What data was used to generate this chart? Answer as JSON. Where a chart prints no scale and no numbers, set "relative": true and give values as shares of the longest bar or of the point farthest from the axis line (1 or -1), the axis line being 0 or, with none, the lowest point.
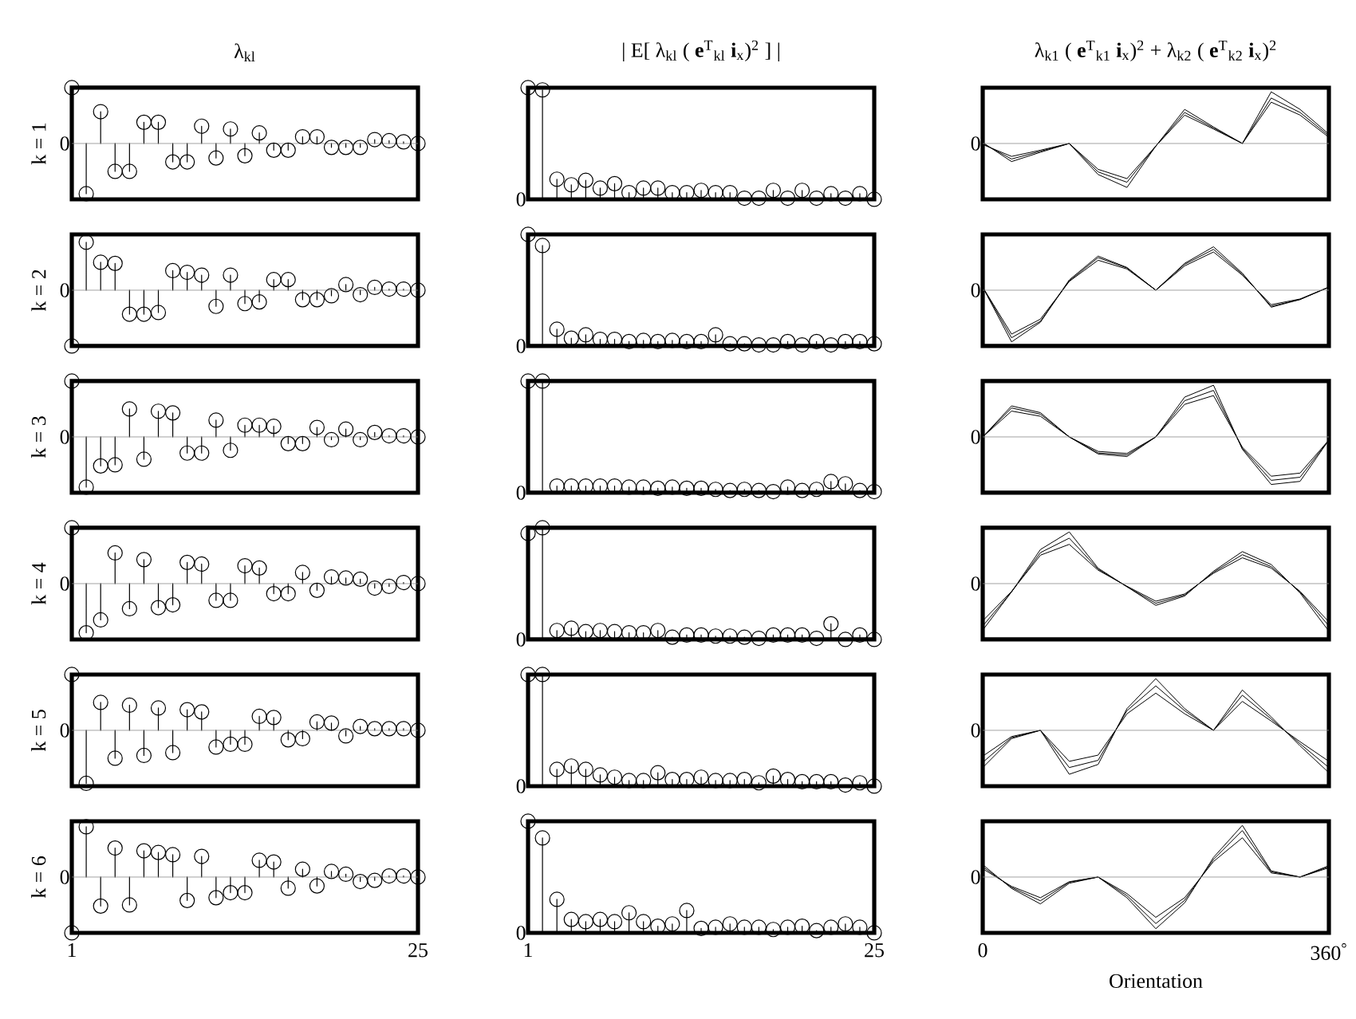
{
  "chart_data": [
    {
      "type": "lollipop",
      "title": "λ$_{kl}$",
      "ylabel": "k = 1",
      "x": [
        1,
        2,
        3,
        4,
        5,
        6,
        7,
        8,
        9,
        10,
        11,
        12,
        13,
        14,
        15,
        16,
        17,
        18,
        19,
        20,
        21,
        22,
        23,
        24,
        25
      ],
      "xlim": [
        1,
        25
      ],
      "ref_lines": [
        {
          "axis": "y",
          "value": 0,
          "label": "0"
        }
      ],
      "tick_labels": "y",
      "relative": true,
      "marker": "circle",
      "color": "#000000",
      "values": [
        1,
        -0.9,
        0.57,
        -0.5,
        -0.5,
        0.38,
        0.38,
        -0.33,
        -0.33,
        0.31,
        -0.26,
        0.26,
        -0.22,
        0.19,
        -0.12,
        -0.12,
        0.12,
        0.12,
        -0.07,
        -0.07,
        -0.07,
        0.07,
        0.05,
        0.03,
        0
      ]
    },
    {
      "type": "lollipop",
      "title": "| E[ λ$_{kl}$ ( **e**$^{T}$$_{kl}$  **i**$_{x}$)$^{2}$ ] |",
      "x": [
        1,
        2,
        3,
        4,
        5,
        6,
        7,
        8,
        9,
        10,
        11,
        12,
        13,
        14,
        15,
        16,
        17,
        18,
        19,
        20,
        21,
        22,
        23,
        24,
        25
      ],
      "xlim": [
        1,
        25
      ],
      "annotations": [
        "0"
      ],
      "tick_labels": "y",
      "relative": true,
      "marker": "circle",
      "color": "#000000",
      "values": [
        1,
        0.98,
        0.18,
        0.13,
        0.17,
        0.1,
        0.14,
        0.06,
        0.1,
        0.1,
        0.06,
        0.06,
        0.08,
        0.06,
        0.06,
        0.01,
        0.01,
        0.08,
        0.01,
        0.08,
        0.01,
        0.05,
        0.01,
        0.05,
        0
      ]
    },
    {
      "type": "line",
      "title": "λ$_{k1}$ ( **e**$^{T}$$_{k1}$  **i**$_{x}$)$^{2}$ + λ$_{k2}$ ( **e**$^{T}$$_{k2}$  **i**$_{x}$)$^{2}$",
      "x": [
        0,
        30,
        60,
        90,
        120,
        150,
        180,
        210,
        240,
        270,
        300,
        330,
        360
      ],
      "xlim": [
        0,
        360
      ],
      "ref_lines": [
        {
          "axis": "y",
          "value": 0,
          "label": "0"
        }
      ],
      "tick_labels": "y",
      "relative": true,
      "color": "#000000",
      "series": [
        {
          "values": [
            0.02,
            -0.35,
            -0.17,
            0,
            -0.6,
            -0.85,
            -0.05,
            0.66,
            0.32,
            0,
            1,
            0.66,
            0.18
          ]
        },
        {
          "values": [
            0,
            -0.3,
            -0.15,
            0,
            -0.55,
            -0.75,
            -0.05,
            0.6,
            0.3,
            0,
            0.88,
            0.6,
            0.15
          ]
        },
        {
          "values": [
            -0.02,
            -0.25,
            -0.13,
            0,
            -0.5,
            -0.68,
            -0.05,
            0.55,
            0.28,
            0,
            0.8,
            0.55,
            0.12
          ]
        }
      ]
    },
    {
      "type": "lollipop",
      "ylabel": "k = 2",
      "x": [
        1,
        2,
        3,
        4,
        5,
        6,
        7,
        8,
        9,
        10,
        11,
        12,
        13,
        14,
        15,
        16,
        17,
        18,
        19,
        20,
        21,
        22,
        23,
        24,
        25
      ],
      "xlim": [
        1,
        25
      ],
      "ref_lines": [
        {
          "axis": "y",
          "value": 0,
          "label": "0"
        }
      ],
      "tick_labels": "y",
      "relative": true,
      "marker": "circle",
      "color": "#000000",
      "values": [
        -1,
        0.86,
        0.5,
        0.48,
        -0.43,
        -0.43,
        -0.4,
        0.35,
        0.32,
        0.27,
        -0.29,
        0.27,
        -0.24,
        -0.21,
        0.19,
        0.19,
        -0.17,
        -0.17,
        -0.1,
        0.1,
        -0.08,
        0.05,
        0.02,
        0.02,
        0
      ]
    },
    {
      "type": "lollipop",
      "x": [
        1,
        2,
        3,
        4,
        5,
        6,
        7,
        8,
        9,
        10,
        11,
        12,
        13,
        14,
        15,
        16,
        17,
        18,
        19,
        20,
        21,
        22,
        23,
        24,
        25
      ],
      "xlim": [
        1,
        25
      ],
      "annotations": [
        "0"
      ],
      "tick_labels": "y",
      "relative": true,
      "marker": "circle",
      "color": "#000000",
      "values": [
        1,
        0.9,
        0.15,
        0.07,
        0.1,
        0.06,
        0.06,
        0.04,
        0.05,
        0.04,
        0.05,
        0.04,
        0.04,
        0.1,
        0.02,
        0.02,
        0.01,
        0.01,
        0.04,
        0.01,
        0.04,
        0.01,
        0.04,
        0.04,
        0.02
      ]
    },
    {
      "type": "line",
      "x": [
        0,
        30,
        60,
        90,
        120,
        150,
        180,
        210,
        240,
        270,
        300,
        330,
        360
      ],
      "xlim": [
        0,
        360
      ],
      "ref_lines": [
        {
          "axis": "y",
          "value": 0,
          "label": "0"
        }
      ],
      "tick_labels": "y",
      "relative": true,
      "color": "#000000",
      "series": [
        {
          "values": [
            0.06,
            -1,
            -0.62,
            0.2,
            0.66,
            0.44,
            0,
            0.52,
            0.84,
            0.33,
            -0.33,
            -0.18,
            0.06
          ]
        },
        {
          "values": [
            0.06,
            -0.92,
            -0.6,
            0.18,
            0.63,
            0.43,
            0,
            0.5,
            0.79,
            0.31,
            -0.31,
            -0.18,
            0.06
          ]
        },
        {
          "values": [
            0.06,
            -0.85,
            -0.56,
            0.17,
            0.58,
            0.41,
            0,
            0.47,
            0.74,
            0.29,
            -0.28,
            -0.17,
            0.06
          ]
        }
      ]
    },
    {
      "type": "lollipop",
      "ylabel": "k = 3",
      "x": [
        1,
        2,
        3,
        4,
        5,
        6,
        7,
        8,
        9,
        10,
        11,
        12,
        13,
        14,
        15,
        16,
        17,
        18,
        19,
        20,
        21,
        22,
        23,
        24,
        25
      ],
      "xlim": [
        1,
        25
      ],
      "ref_lines": [
        {
          "axis": "y",
          "value": 0,
          "label": "0"
        }
      ],
      "tick_labels": "y",
      "relative": true,
      "marker": "circle",
      "color": "#000000",
      "values": [
        1,
        -0.9,
        -0.52,
        -0.5,
        0.5,
        -0.4,
        0.46,
        0.43,
        -0.29,
        -0.29,
        0.3,
        -0.24,
        0.21,
        0.21,
        0.19,
        -0.12,
        -0.12,
        0.17,
        -0.05,
        0.14,
        -0.05,
        0.08,
        0.02,
        0.02,
        0
      ]
    },
    {
      "type": "lollipop",
      "x": [
        1,
        2,
        3,
        4,
        5,
        6,
        7,
        8,
        9,
        10,
        11,
        12,
        13,
        14,
        15,
        16,
        17,
        18,
        19,
        20,
        21,
        22,
        23,
        24,
        25
      ],
      "xlim": [
        1,
        25
      ],
      "annotations": [
        "0"
      ],
      "tick_labels": "y",
      "relative": true,
      "marker": "circle",
      "color": "#000000",
      "values": [
        1,
        1,
        0.06,
        0.06,
        0.06,
        0.06,
        0.06,
        0.05,
        0.05,
        0.04,
        0.05,
        0.04,
        0.04,
        0.03,
        0.02,
        0.03,
        0.02,
        0.01,
        0.05,
        0.02,
        0.03,
        0.1,
        0.08,
        0.02,
        0.01
      ]
    },
    {
      "type": "line",
      "x": [
        0,
        30,
        60,
        90,
        120,
        150,
        180,
        210,
        240,
        270,
        300,
        330,
        360
      ],
      "xlim": [
        0,
        360
      ],
      "ref_lines": [
        {
          "axis": "y",
          "value": 0,
          "label": "0"
        }
      ],
      "tick_labels": "y",
      "relative": true,
      "color": "#000000",
      "series": [
        {
          "values": [
            0,
            0.6,
            0.47,
            0,
            -0.33,
            -0.38,
            0,
            0.77,
            1,
            -0.24,
            -0.92,
            -0.86,
            -0.06
          ]
        },
        {
          "values": [
            0,
            0.56,
            0.44,
            0,
            -0.31,
            -0.35,
            0,
            0.7,
            0.9,
            -0.22,
            -0.84,
            -0.78,
            -0.06
          ]
        },
        {
          "values": [
            0,
            0.5,
            0.4,
            0,
            -0.28,
            -0.32,
            0,
            0.63,
            0.8,
            -0.2,
            -0.76,
            -0.7,
            -0.06
          ]
        }
      ]
    },
    {
      "type": "lollipop",
      "ylabel": "k = 4",
      "x": [
        1,
        2,
        3,
        4,
        5,
        6,
        7,
        8,
        9,
        10,
        11,
        12,
        13,
        14,
        15,
        16,
        17,
        18,
        19,
        20,
        21,
        22,
        23,
        24,
        25
      ],
      "xlim": [
        1,
        25
      ],
      "ref_lines": [
        {
          "axis": "y",
          "value": 0,
          "label": "0"
        }
      ],
      "tick_labels": "y",
      "relative": true,
      "marker": "circle",
      "color": "#000000",
      "values": [
        1,
        -0.88,
        -0.65,
        0.55,
        -0.45,
        0.43,
        -0.43,
        -0.38,
        0.38,
        0.35,
        -0.3,
        -0.3,
        0.32,
        0.28,
        -0.18,
        -0.18,
        0.2,
        -0.12,
        0.12,
        0.1,
        0.08,
        -0.08,
        -0.05,
        0.02,
        0
      ]
    },
    {
      "type": "lollipop",
      "x": [
        1,
        2,
        3,
        4,
        5,
        6,
        7,
        8,
        9,
        10,
        11,
        12,
        13,
        14,
        15,
        16,
        17,
        18,
        19,
        20,
        21,
        22,
        23,
        24,
        25
      ],
      "xlim": [
        1,
        25
      ],
      "annotations": [
        "0"
      ],
      "tick_labels": "y",
      "relative": true,
      "marker": "circle",
      "color": "#000000",
      "values": [
        0.95,
        1,
        0.08,
        0.1,
        0.07,
        0.08,
        0.07,
        0.06,
        0.06,
        0.08,
        0.02,
        0.04,
        0.04,
        0.03,
        0.03,
        0.02,
        0.01,
        0.04,
        0.04,
        0.04,
        0.01,
        0.14,
        0,
        0.04,
        0
      ]
    },
    {
      "type": "line",
      "x": [
        0,
        30,
        60,
        90,
        120,
        150,
        180,
        210,
        240,
        270,
        300,
        330,
        360
      ],
      "xlim": [
        0,
        360
      ],
      "ref_lines": [
        {
          "axis": "y",
          "value": 0,
          "label": "0"
        }
      ],
      "tick_labels": "y",
      "relative": true,
      "color": "#000000",
      "series": [
        {
          "values": [
            -0.9,
            -0.16,
            0.66,
            1,
            0.3,
            -0.06,
            -0.42,
            -0.24,
            0.24,
            0.62,
            0.37,
            -0.18,
            -0.92
          ]
        },
        {
          "values": [
            -0.82,
            -0.16,
            0.6,
            0.88,
            0.28,
            -0.06,
            -0.38,
            -0.22,
            0.22,
            0.56,
            0.33,
            -0.16,
            -0.82
          ]
        },
        {
          "values": [
            -0.72,
            -0.15,
            0.55,
            0.76,
            0.26,
            -0.05,
            -0.34,
            -0.2,
            0.2,
            0.5,
            0.3,
            -0.15,
            -0.74
          ]
        }
      ]
    },
    {
      "type": "lollipop",
      "ylabel": "k = 5",
      "x": [
        1,
        2,
        3,
        4,
        5,
        6,
        7,
        8,
        9,
        10,
        11,
        12,
        13,
        14,
        15,
        16,
        17,
        18,
        19,
        20,
        21,
        22,
        23,
        24,
        25
      ],
      "xlim": [
        1,
        25
      ],
      "ref_lines": [
        {
          "axis": "y",
          "value": 0,
          "label": "0"
        }
      ],
      "tick_labels": "y",
      "relative": true,
      "marker": "circle",
      "color": "#000000",
      "values": [
        1,
        -0.95,
        0.5,
        -0.5,
        0.45,
        -0.45,
        0.4,
        -0.4,
        0.37,
        0.33,
        -0.3,
        -0.25,
        -0.25,
        0.25,
        0.23,
        -0.17,
        -0.15,
        0.15,
        0.13,
        -0.1,
        0.07,
        0.03,
        0.03,
        0.03,
        0
      ]
    },
    {
      "type": "lollipop",
      "x": [
        1,
        2,
        3,
        4,
        5,
        6,
        7,
        8,
        9,
        10,
        11,
        12,
        13,
        14,
        15,
        16,
        17,
        18,
        19,
        20,
        21,
        22,
        23,
        24,
        25
      ],
      "xlim": [
        1,
        25
      ],
      "annotations": [
        "0"
      ],
      "tick_labels": "y",
      "relative": true,
      "marker": "circle",
      "color": "#000000",
      "values": [
        1,
        1,
        0.15,
        0.18,
        0.15,
        0.1,
        0.08,
        0.05,
        0.05,
        0.12,
        0.06,
        0.06,
        0.08,
        0.05,
        0.05,
        0.06,
        0.03,
        0.09,
        0.06,
        0.04,
        0.04,
        0.04,
        0.01,
        0.03,
        0
      ]
    },
    {
      "type": "line",
      "x": [
        0,
        30,
        60,
        90,
        120,
        150,
        180,
        210,
        240,
        270,
        300,
        330,
        360
      ],
      "xlim": [
        0,
        360
      ],
      "ref_lines": [
        {
          "axis": "y",
          "value": 0,
          "label": "0"
        }
      ],
      "tick_labels": "y",
      "relative": true,
      "color": "#000000",
      "series": [
        {
          "values": [
            -0.72,
            -0.16,
            0,
            -0.85,
            -0.66,
            0.42,
            1,
            0.42,
            0,
            0.78,
            0.26,
            -0.3,
            -0.82
          ]
        },
        {
          "values": [
            -0.62,
            -0.14,
            0,
            -0.72,
            -0.58,
            0.38,
            0.86,
            0.38,
            0,
            0.68,
            0.22,
            -0.26,
            -0.72
          ]
        },
        {
          "values": [
            -0.5,
            -0.12,
            0,
            -0.6,
            -0.48,
            0.32,
            0.72,
            0.32,
            0,
            0.56,
            0.18,
            -0.22,
            -0.6
          ]
        }
      ]
    },
    {
      "type": "lollipop",
      "ylabel": "k = 6",
      "x": [
        1,
        2,
        3,
        4,
        5,
        6,
        7,
        8,
        9,
        10,
        11,
        12,
        13,
        14,
        15,
        16,
        17,
        18,
        19,
        20,
        21,
        22,
        23,
        24,
        25
      ],
      "xlim": [
        1,
        25
      ],
      "xticks": [
        1,
        25
      ],
      "ref_lines": [
        {
          "axis": "y",
          "value": 0,
          "label": "0"
        }
      ],
      "tick_labels": "x",
      "relative": true,
      "marker": "circle",
      "color": "#000000",
      "values": [
        -1,
        0.9,
        -0.52,
        0.52,
        -0.5,
        0.47,
        0.44,
        0.4,
        -0.42,
        0.37,
        -0.37,
        -0.28,
        -0.28,
        0.3,
        0.27,
        -0.2,
        0.14,
        -0.16,
        0.1,
        0.05,
        -0.08,
        -0.06,
        0.02,
        0.02,
        0
      ]
    },
    {
      "type": "lollipop",
      "x": [
        1,
        2,
        3,
        4,
        5,
        6,
        7,
        8,
        9,
        10,
        11,
        12,
        13,
        14,
        15,
        16,
        17,
        18,
        19,
        20,
        21,
        22,
        23,
        24,
        25
      ],
      "xlim": [
        1,
        25
      ],
      "xticks": [
        1,
        25
      ],
      "annotations": [
        "0"
      ],
      "tick_labels": "x",
      "relative": true,
      "marker": "circle",
      "color": "#000000",
      "values": [
        1,
        0.85,
        0.3,
        0.12,
        0.1,
        0.12,
        0.1,
        0.18,
        0.1,
        0.06,
        0.08,
        0.2,
        0.04,
        0.05,
        0.08,
        0.05,
        0.05,
        0.03,
        0.05,
        0.06,
        0.02,
        0.05,
        0.08,
        0.05,
        0
      ]
    },
    {
      "type": "line",
      "xlabel": "Orientation",
      "x": [
        0,
        30,
        60,
        90,
        120,
        150,
        180,
        210,
        240,
        270,
        300,
        330,
        360
      ],
      "xlim": [
        0,
        360
      ],
      "xticks": [
        0,
        {
          "value": 360,
          "label": "360$^{°}$"
        }
      ],
      "ref_lines": [
        {
          "axis": "y",
          "value": 0,
          "label": "0"
        }
      ],
      "tick_labels": "x",
      "relative": true,
      "color": "#000000",
      "series": [
        {
          "values": [
            0.24,
            -0.22,
            -0.52,
            -0.12,
            0,
            -0.4,
            -1,
            -0.5,
            0.38,
            1,
            0.12,
            0,
            0.22
          ]
        },
        {
          "values": [
            0.2,
            -0.2,
            -0.46,
            -0.1,
            0,
            -0.36,
            -0.9,
            -0.45,
            0.34,
            0.9,
            0.1,
            0,
            0.2
          ]
        },
        {
          "values": [
            0.16,
            -0.18,
            -0.4,
            -0.09,
            0,
            -0.32,
            -0.78,
            -0.4,
            0.3,
            0.76,
            0.08,
            0,
            0.18
          ]
        }
      ]
    }
  ]
}
